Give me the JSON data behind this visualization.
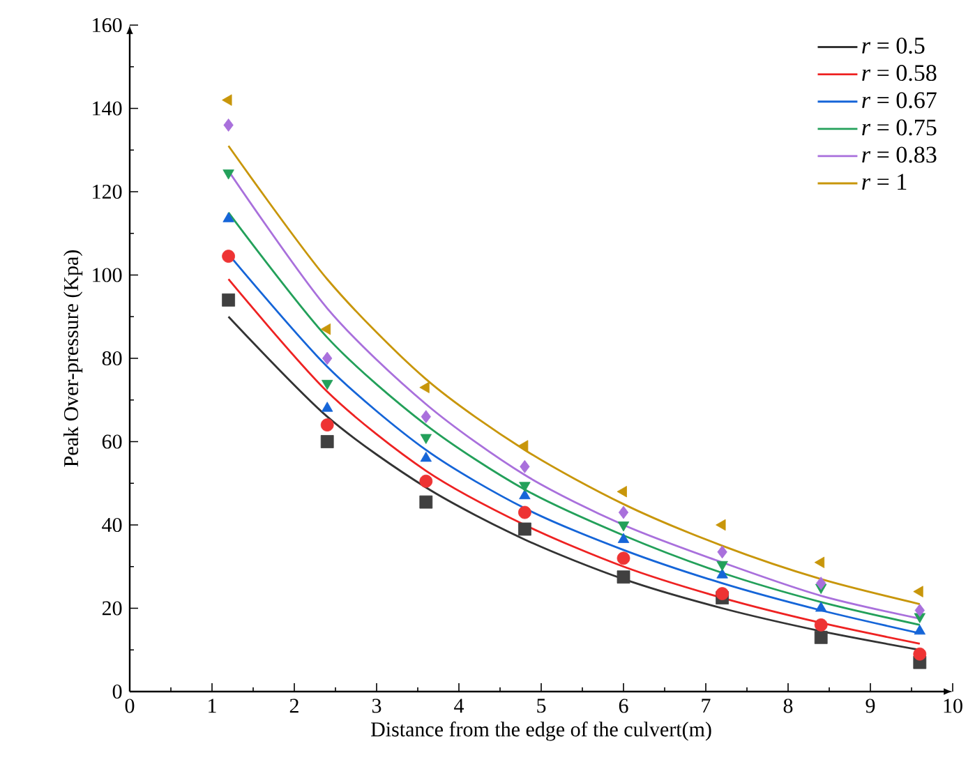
{
  "chart_data": {
    "type": "scatter",
    "xlabel": "Distance from the edge of the culvert(m)",
    "ylabel": "Peak Over-pressure (Kpa)",
    "xlim": [
      0,
      10
    ],
    "xticks": [
      0,
      1,
      2,
      3,
      4,
      5,
      6,
      7,
      8,
      9,
      10
    ],
    "ylim": [
      0,
      160
    ],
    "yticks": [
      0,
      20,
      40,
      60,
      80,
      100,
      120,
      140,
      160
    ],
    "legend": "top right",
    "series": [
      {
        "color": "#404040",
        "marker": "square",
        "x": [
          1.2,
          2.4,
          3.6,
          4.8,
          6,
          7.2,
          8.4,
          9.6
        ],
        "values": [
          94,
          60,
          45.5,
          39,
          27.5,
          22.5,
          13,
          7
        ]
      },
      {
        "color": "#ee3333",
        "marker": "circle",
        "x": [
          1.2,
          2.4,
          3.6,
          4.8,
          6,
          7.2,
          8.4,
          9.6
        ],
        "values": [
          104.5,
          64,
          50.5,
          43,
          32,
          23.5,
          16,
          9
        ]
      },
      {
        "color": "#1565d8",
        "marker": "triangle",
        "x": [
          1.2,
          2.4,
          3.6,
          4.8,
          6,
          7.2,
          8.4,
          9.6
        ],
        "values": [
          113.5,
          68,
          56,
          47,
          36.5,
          28,
          20,
          14.5
        ]
      },
      {
        "color": "#23a05a",
        "marker": "triangle-down",
        "x": [
          1.2,
          2.4,
          3.6,
          4.8,
          6,
          7.2,
          8.4,
          9.6
        ],
        "values": [
          124.5,
          74,
          61,
          49.5,
          40,
          30.5,
          25,
          18
        ]
      },
      {
        "color": "#a970dc",
        "marker": "diamond",
        "x": [
          1.2,
          2.4,
          3.6,
          4.8,
          6,
          7.2,
          8.4,
          9.6
        ],
        "values": [
          136,
          80,
          66,
          54,
          43,
          33.5,
          26,
          19.5
        ]
      },
      {
        "color": "#c8960a",
        "marker": "triangle-left",
        "x": [
          1.2,
          2.4,
          3.6,
          4.8,
          6,
          7.2,
          8.4,
          9.6
        ],
        "values": [
          142,
          87,
          73,
          59,
          48,
          40,
          31,
          24
        ]
      },
      {
        "type": "line",
        "name": "*r* = 0.5",
        "color": "#333333",
        "x": [
          1.2,
          2.4,
          3.6,
          4.8,
          6,
          7.2,
          8.4,
          9.6
        ],
        "values": [
          90,
          66,
          49,
          36.5,
          27,
          20,
          14.5,
          10
        ]
      },
      {
        "type": "line",
        "name": "*r* = 0.58",
        "color": "#ee2222",
        "x": [
          1.2,
          2.4,
          3.6,
          4.8,
          6,
          7.2,
          8.4,
          9.6
        ],
        "values": [
          99,
          72,
          53,
          40,
          30,
          22.5,
          16.5,
          11.5
        ]
      },
      {
        "type": "line",
        "name": "*r* = 0.67",
        "color": "#1565d8",
        "x": [
          1.2,
          2.4,
          3.6,
          4.8,
          6,
          7.2,
          8.4,
          9.6
        ],
        "values": [
          105,
          78,
          58,
          44,
          34,
          26,
          19.5,
          14
        ]
      },
      {
        "type": "line",
        "name": "*r* = 0.75",
        "color": "#23a05a",
        "x": [
          1.2,
          2.4,
          3.6,
          4.8,
          6,
          7.2,
          8.4,
          9.6
        ],
        "values": [
          115,
          85,
          64,
          48.5,
          37.5,
          28.5,
          21.5,
          16
        ]
      },
      {
        "type": "line",
        "name": "*r* = 0.83",
        "color": "#a970dc",
        "x": [
          1.2,
          2.4,
          3.6,
          4.8,
          6,
          7.2,
          8.4,
          9.6
        ],
        "values": [
          125,
          92,
          69,
          52,
          40,
          31,
          23,
          17.5
        ]
      },
      {
        "type": "line",
        "name": "*r* = 1",
        "color": "#c8960a",
        "x": [
          1.2,
          2.4,
          3.6,
          4.8,
          6,
          7.2,
          8.4,
          9.6
        ],
        "values": [
          131,
          99,
          75,
          58,
          45,
          35,
          27,
          21
        ]
      }
    ]
  }
}
